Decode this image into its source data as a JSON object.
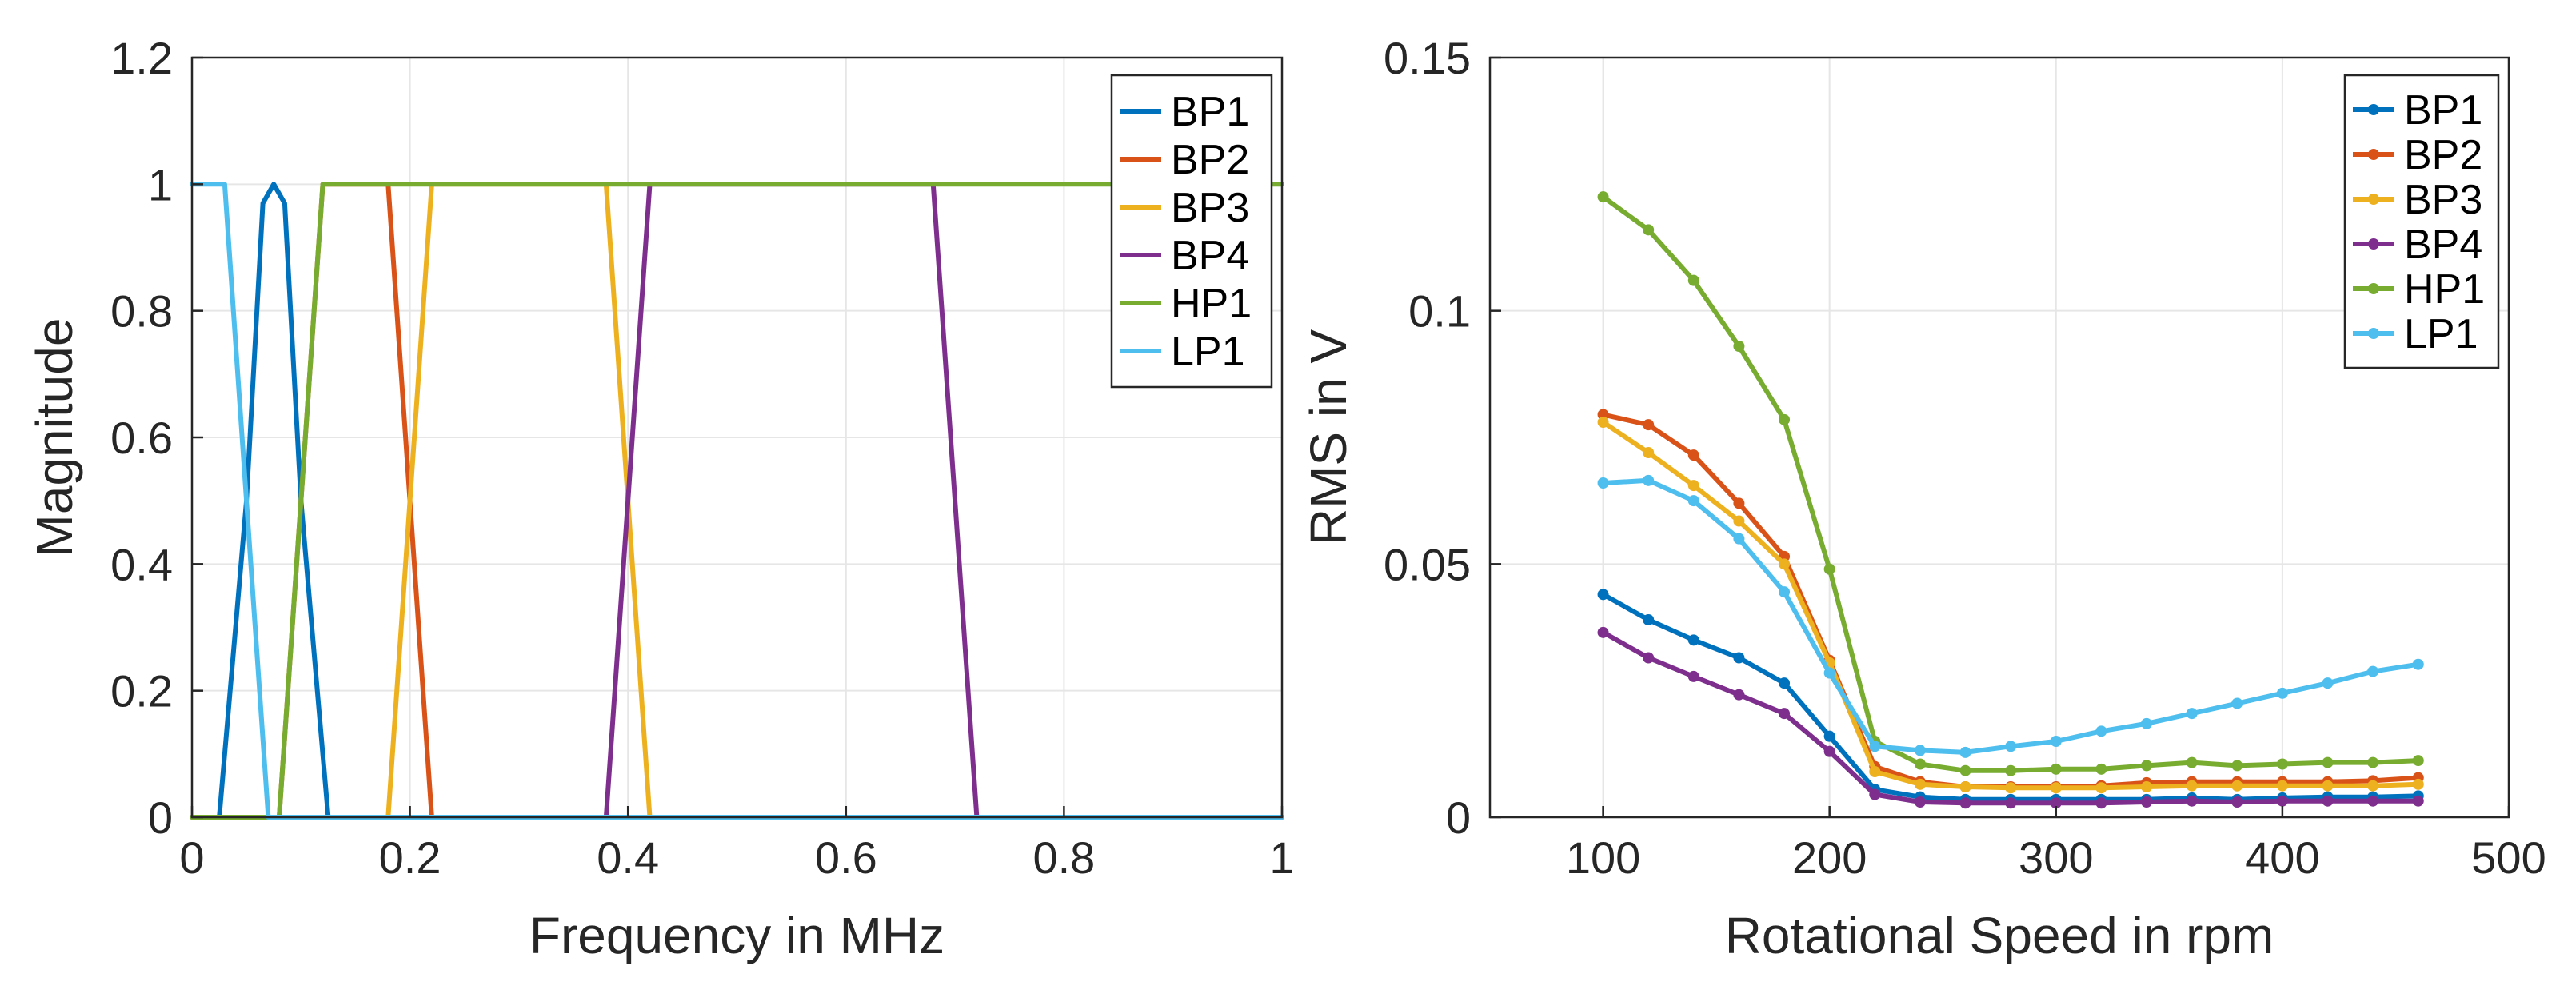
{
  "chart_data": [
    {
      "type": "line",
      "title": "",
      "xlabel": "Frequency in MHz",
      "ylabel": "Magnitude",
      "xlim": [
        0,
        1
      ],
      "ylim": [
        0,
        1.2
      ],
      "xticks": [
        0,
        0.2,
        0.4,
        0.6,
        0.8,
        1
      ],
      "xtick_labels": [
        "0",
        "0.2",
        "0.4",
        "0.6",
        "0.8",
        "1"
      ],
      "yticks": [
        0,
        0.2,
        0.4,
        0.6,
        0.8,
        1,
        1.2
      ],
      "ytick_labels": [
        "0",
        "0.2",
        "0.4",
        "0.6",
        "0.8",
        "1",
        "1.2"
      ],
      "grid": true,
      "legend_position": "top-right",
      "series": [
        {
          "name": "BP1",
          "color": "#0072BD",
          "x": [
            0,
            0.025,
            0.05,
            0.065,
            0.075,
            0.085,
            0.1,
            0.125,
            1
          ],
          "y": [
            0,
            0,
            0.5,
            0.97,
            1,
            0.97,
            0.5,
            0,
            0
          ]
        },
        {
          "name": "BP2",
          "color": "#D95319",
          "x": [
            0,
            0.08,
            0.1,
            0.12,
            0.18,
            0.2,
            0.22,
            1
          ],
          "y": [
            0,
            0,
            0.5,
            1,
            1,
            0.5,
            0,
            0
          ]
        },
        {
          "name": "BP3",
          "color": "#EDB120",
          "x": [
            0,
            0.18,
            0.2,
            0.22,
            0.38,
            0.4,
            0.42,
            1
          ],
          "y": [
            0,
            0,
            0.5,
            1,
            1,
            0.5,
            0,
            0
          ]
        },
        {
          "name": "BP4",
          "color": "#7E2F8E",
          "x": [
            0,
            0.38,
            0.4,
            0.42,
            0.68,
            0.7,
            0.72,
            1
          ],
          "y": [
            0,
            0,
            0.5,
            1,
            1,
            0.5,
            0,
            0
          ]
        },
        {
          "name": "HP1",
          "color": "#77AC30",
          "x": [
            0,
            0.08,
            0.1,
            0.12,
            1
          ],
          "y": [
            0,
            0,
            0.5,
            1,
            1
          ]
        },
        {
          "name": "LP1",
          "color": "#4DBEEE",
          "x": [
            0,
            0.03,
            0.05,
            0.07,
            1
          ],
          "y": [
            1,
            1,
            0.5,
            0,
            0
          ]
        }
      ]
    },
    {
      "type": "line",
      "title": "",
      "xlabel": "Rotational Speed in rpm",
      "ylabel": "RMS in V",
      "xlim": [
        50,
        500
      ],
      "ylim": [
        0,
        0.15
      ],
      "xticks": [
        100,
        200,
        300,
        400,
        500
      ],
      "xtick_labels": [
        "100",
        "200",
        "300",
        "400",
        "500"
      ],
      "yticks": [
        0,
        0.05,
        0.1,
        0.15
      ],
      "ytick_labels": [
        "0",
        "0.05",
        "0.1",
        "0.15"
      ],
      "grid": true,
      "legend_position": "top-right",
      "markers": true,
      "x": [
        100,
        120,
        140,
        160,
        180,
        200,
        220,
        240,
        260,
        280,
        300,
        320,
        340,
        360,
        380,
        400,
        420,
        440,
        460
      ],
      "series": [
        {
          "name": "BP1",
          "color": "#0072BD",
          "values": [
            0.044,
            0.039,
            0.035,
            0.0315,
            0.0265,
            0.016,
            0.0055,
            0.004,
            0.0035,
            0.0035,
            0.0035,
            0.0035,
            0.0035,
            0.0038,
            0.0035,
            0.0038,
            0.004,
            0.004,
            0.0042
          ]
        },
        {
          "name": "BP2",
          "color": "#D95319",
          "values": [
            0.0795,
            0.0775,
            0.0715,
            0.062,
            0.0515,
            0.031,
            0.01,
            0.007,
            0.006,
            0.006,
            0.006,
            0.0062,
            0.0068,
            0.007,
            0.007,
            0.007,
            0.007,
            0.0072,
            0.0078
          ]
        },
        {
          "name": "BP3",
          "color": "#EDB120",
          "values": [
            0.078,
            0.072,
            0.0655,
            0.0585,
            0.05,
            0.0305,
            0.009,
            0.0065,
            0.006,
            0.0058,
            0.0058,
            0.0058,
            0.006,
            0.0062,
            0.0062,
            0.0062,
            0.0062,
            0.0062,
            0.0065
          ]
        },
        {
          "name": "BP4",
          "color": "#7E2F8E",
          "values": [
            0.0365,
            0.0315,
            0.0278,
            0.0242,
            0.0205,
            0.013,
            0.0045,
            0.003,
            0.0028,
            0.0028,
            0.0028,
            0.0028,
            0.003,
            0.0032,
            0.003,
            0.0032,
            0.0032,
            0.0032,
            0.0032
          ]
        },
        {
          "name": "HP1",
          "color": "#77AC30",
          "values": [
            0.1225,
            0.116,
            0.106,
            0.093,
            0.0785,
            0.049,
            0.015,
            0.0105,
            0.0092,
            0.0092,
            0.0095,
            0.0095,
            0.0102,
            0.0108,
            0.0102,
            0.0105,
            0.0108,
            0.0108,
            0.0112
          ]
        },
        {
          "name": "LP1",
          "color": "#4DBEEE",
          "values": [
            0.066,
            0.0665,
            0.0625,
            0.055,
            0.0445,
            0.0285,
            0.014,
            0.0132,
            0.0128,
            0.014,
            0.015,
            0.017,
            0.0185,
            0.0205,
            0.0225,
            0.0245,
            0.0265,
            0.0288,
            0.0302
          ]
        }
      ]
    }
  ]
}
